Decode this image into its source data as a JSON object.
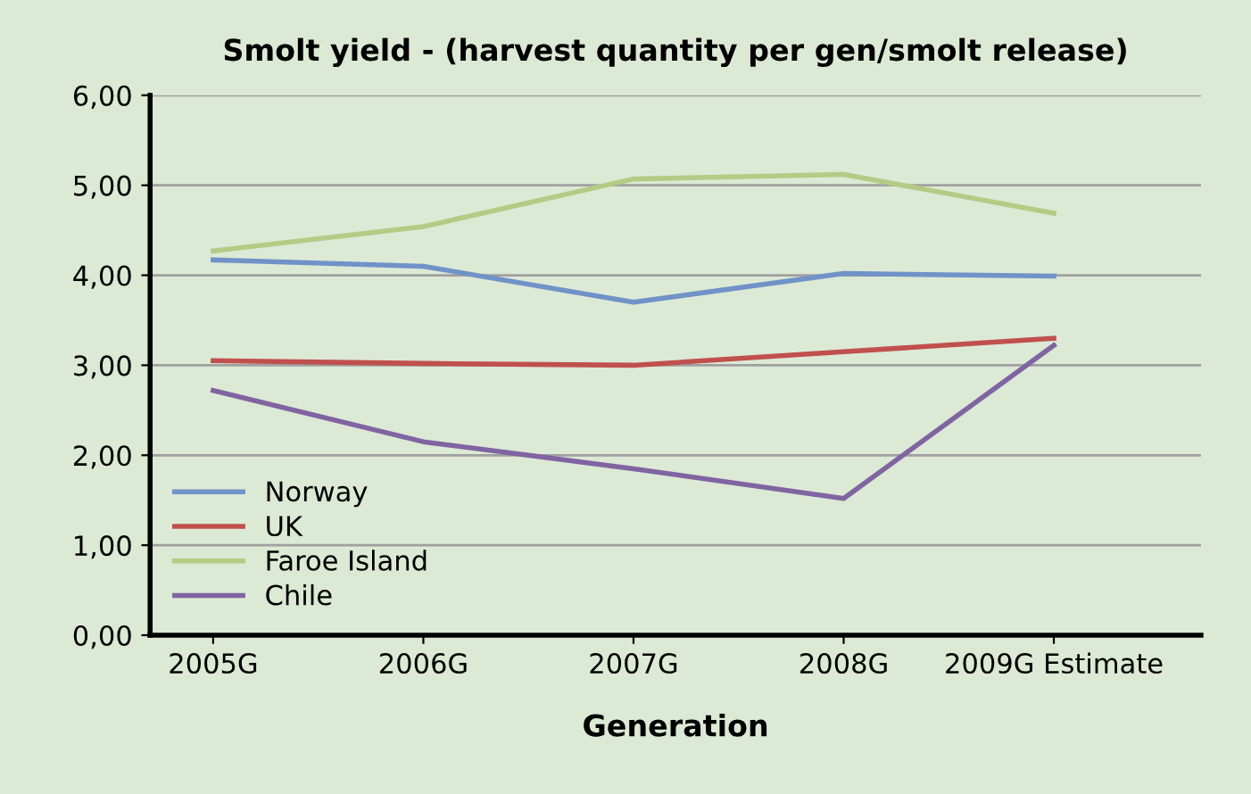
{
  "chart_data": {
    "type": "line",
    "title": "Smolt yield - (harvest quantity per gen/smolt release)",
    "xlabel": "Generation",
    "categories": [
      "2005G",
      "2006G",
      "2007G",
      "2008G",
      "2009G Estimate"
    ],
    "series": [
      {
        "name": "Norway",
        "color": "#7092c8",
        "values": [
          4.17,
          4.1,
          3.7,
          4.02,
          3.99
        ]
      },
      {
        "name": "UK",
        "color": "#c0504d",
        "values": [
          3.05,
          3.02,
          3.0,
          3.15,
          3.3
        ]
      },
      {
        "name": "Faroe Island",
        "color": "#b3cb84",
        "values": [
          4.27,
          4.54,
          5.07,
          5.12,
          4.69
        ]
      },
      {
        "name": "Chile",
        "color": "#8064a2",
        "values": [
          2.72,
          2.15,
          1.85,
          1.52,
          3.22
        ]
      }
    ],
    "ylim": [
      0,
      6
    ],
    "yticks": [
      {
        "value": 0,
        "label": "0,00"
      },
      {
        "value": 1,
        "label": "1,00"
      },
      {
        "value": 2,
        "label": "2,00"
      },
      {
        "value": 3,
        "label": "3,00"
      },
      {
        "value": 4,
        "label": "4,00"
      },
      {
        "value": 5,
        "label": "5,00"
      },
      {
        "value": 6,
        "label": "6,00"
      }
    ],
    "grid": "y",
    "legend": "bottom left",
    "marker": "none",
    "line_style": "solid"
  }
}
